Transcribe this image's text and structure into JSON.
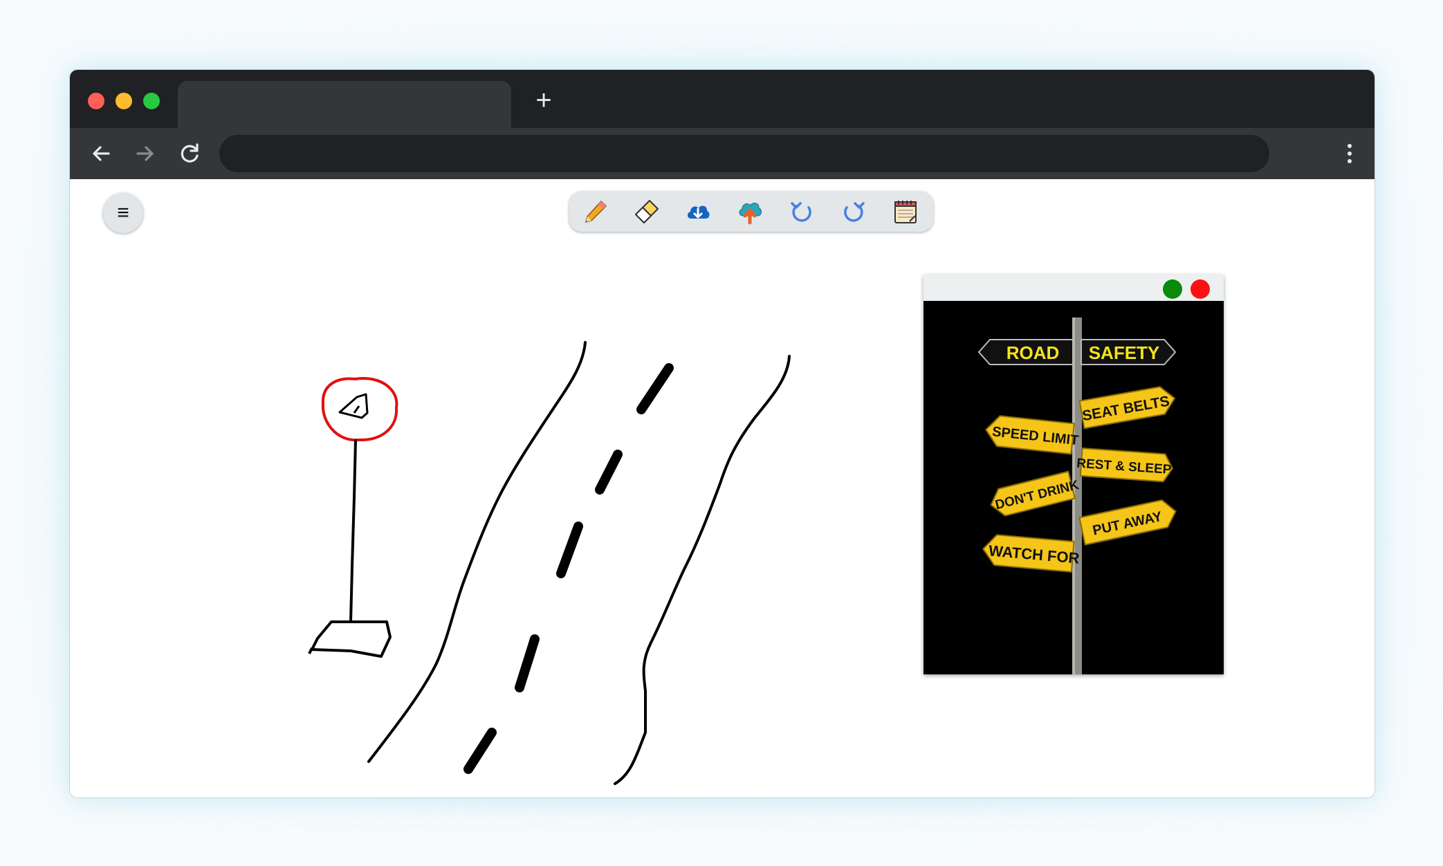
{
  "browser": {
    "tab_title": "",
    "new_tab_icon": "plus-icon",
    "address": ""
  },
  "app": {
    "menu_icon": "hamburger-icon",
    "tools": [
      {
        "name": "pencil-icon"
      },
      {
        "name": "eraser-icon"
      },
      {
        "name": "download-cloud-icon"
      },
      {
        "name": "upload-cloud-icon"
      },
      {
        "name": "undo-icon"
      },
      {
        "name": "redo-icon"
      },
      {
        "name": "notepad-icon"
      }
    ],
    "stroke_colors": {
      "road": "#000000",
      "sign": "#e01010"
    }
  },
  "popup": {
    "sign_top_left": "ROAD",
    "sign_top_right": "SAFETY",
    "signs": [
      "SEAT BELTS",
      "SPEED LIMIT",
      "REST & SLEEP",
      "DON'T DRINK",
      "PUT AWAY",
      "WATCH FOR"
    ],
    "colors": {
      "sign": "#f5c518",
      "text": "#111111"
    }
  }
}
